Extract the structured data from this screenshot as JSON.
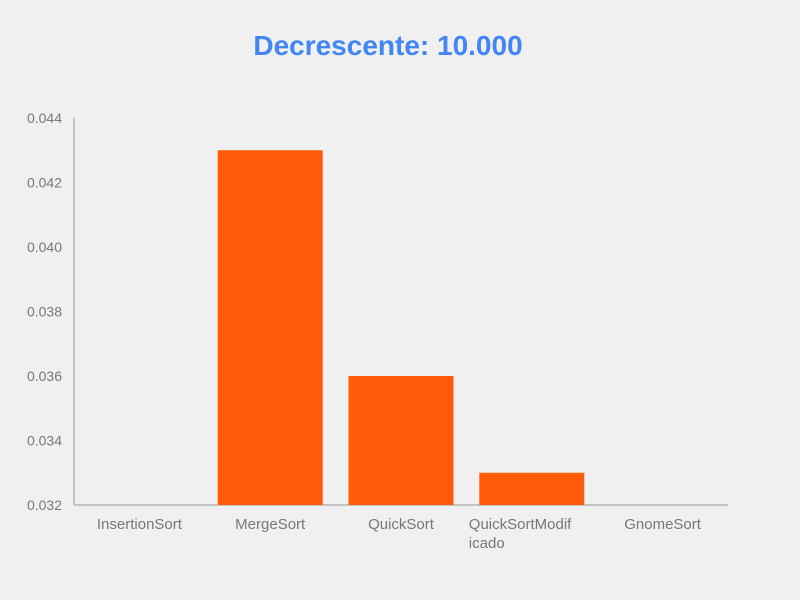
{
  "chart_data": {
    "type": "bar",
    "title": "Decrescente: 10.000",
    "xlabel": "",
    "ylabel": "",
    "categories": [
      "InsertionSort",
      "MergeSort",
      "QuickSort",
      "QuickSortModificado",
      "GnomeSort"
    ],
    "category_display": [
      [
        "InsertionSort"
      ],
      [
        "MergeSort"
      ],
      [
        "QuickSort"
      ],
      [
        "QuickSortModif",
        "icado"
      ],
      [
        "GnomeSort"
      ]
    ],
    "values": [
      0.032,
      0.043,
      0.036,
      0.033,
      0.032
    ],
    "ylim": [
      0.032,
      0.044
    ],
    "yticks": [
      "0.032",
      "0.034",
      "0.036",
      "0.038",
      "0.040",
      "0.042",
      "0.044"
    ],
    "grid": false,
    "legend": "none",
    "colors": {
      "bar": "#ff5a08",
      "title": "#4285f4",
      "axis": "#999999",
      "text": "#777777",
      "background": "#f0f0f0"
    }
  }
}
